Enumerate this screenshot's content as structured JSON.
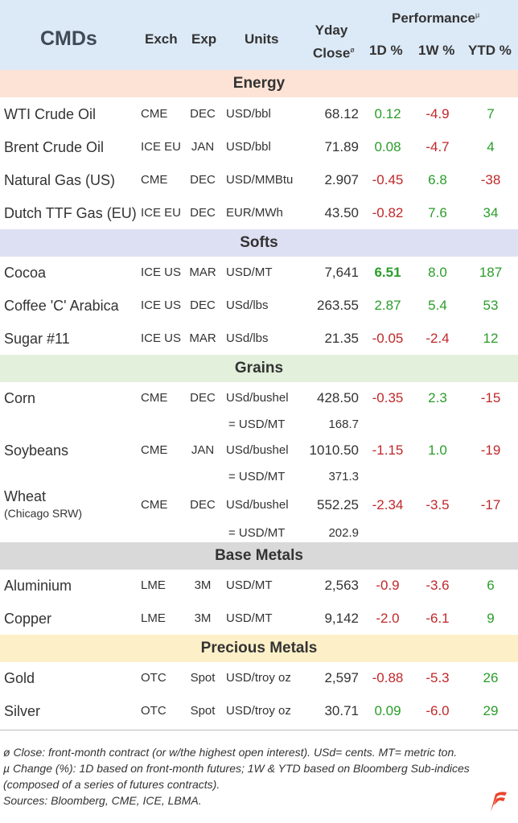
{
  "header": {
    "title": "CMDs",
    "exch": "Exch",
    "exp": "Exp",
    "units": "Units",
    "yday_line1": "Yday",
    "yday_line2": "Close",
    "yday_mark": "ø",
    "performance": "Performance",
    "perf_mark": "µ",
    "d1": "1D %",
    "w1": "1W %",
    "ytd": "YTD %"
  },
  "sections": {
    "energy": "Energy",
    "softs": "Softs",
    "grains": "Grains",
    "base_metals": "Base Metals",
    "precious_metals": "Precious Metals"
  },
  "colors": {
    "header_bg": "#dce9f6",
    "energy_bg": "#fde3d6",
    "softs_bg": "#dde0f2",
    "grains_bg": "#e3f0dc",
    "base_bg": "#d9d9d9",
    "precious_bg": "#fdf0c8",
    "positive": "#2a9d2a",
    "negative": "#c0282a"
  },
  "rows": {
    "wti": {
      "name": "WTI Crude Oil",
      "exch": "CME",
      "exp": "DEC",
      "units": "USD/bbl",
      "close": "68.12",
      "d1": "0.12",
      "w1": "-4.9",
      "ytd": "7"
    },
    "brent": {
      "name": "Brent Crude Oil",
      "exch": "ICE EU",
      "exp": "JAN",
      "units": "USD/bbl",
      "close": "71.89",
      "d1": "0.08",
      "w1": "-4.7",
      "ytd": "4"
    },
    "natgas": {
      "name": "Natural Gas (US)",
      "exch": "CME",
      "exp": "DEC",
      "units": "USD/MMBtu",
      "close": "2.907",
      "d1": "-0.45",
      "w1": "6.8",
      "ytd": "-38"
    },
    "ttf": {
      "name": "Dutch TTF Gas (EU)",
      "exch": "ICE EU",
      "exp": "DEC",
      "units": "EUR/MWh",
      "close": "43.50",
      "d1": "-0.82",
      "w1": "7.6",
      "ytd": "34"
    },
    "cocoa": {
      "name": "Cocoa",
      "exch": "ICE US",
      "exp": "MAR",
      "units": "USD/MT",
      "close": "7,641",
      "d1": "6.51",
      "w1": "8.0",
      "ytd": "187"
    },
    "coffee": {
      "name": "Coffee 'C' Arabica",
      "exch": "ICE US",
      "exp": "DEC",
      "units": "USd/lbs",
      "close": "263.55",
      "d1": "2.87",
      "w1": "5.4",
      "ytd": "53"
    },
    "sugar": {
      "name": "Sugar #11",
      "exch": "ICE US",
      "exp": "MAR",
      "units": "USd/lbs",
      "close": "21.35",
      "d1": "-0.05",
      "w1": "-2.4",
      "ytd": "12"
    },
    "corn": {
      "name": "Corn",
      "exch": "CME",
      "exp": "DEC",
      "units": "USd/bushel",
      "close": "428.50",
      "d1": "-0.35",
      "w1": "2.3",
      "ytd": "-15",
      "conv_units": "= USD/MT",
      "conv_close": "168.7"
    },
    "soy": {
      "name": "Soybeans",
      "exch": "CME",
      "exp": "JAN",
      "units": "USd/bushel",
      "close": "1010.50",
      "d1": "-1.15",
      "w1": "1.0",
      "ytd": "-19",
      "conv_units": "= USD/MT",
      "conv_close": "371.3"
    },
    "wheat": {
      "name": "Wheat",
      "sub": "(Chicago SRW)",
      "exch": "CME",
      "exp": "DEC",
      "units": "USd/bushel",
      "close": "552.25",
      "d1": "-2.34",
      "w1": "-3.5",
      "ytd": "-17",
      "conv_units": "= USD/MT",
      "conv_close": "202.9"
    },
    "alu": {
      "name": "Aluminium",
      "exch": "LME",
      "exp": "3M",
      "units": "USD/MT",
      "close": "2,563",
      "d1": "-0.9",
      "w1": "-3.6",
      "ytd": "6"
    },
    "copper": {
      "name": "Copper",
      "exch": "LME",
      "exp": "3M",
      "units": "USD/MT",
      "close": "9,142",
      "d1": "-2.0",
      "w1": "-6.1",
      "ytd": "9"
    },
    "gold": {
      "name": "Gold",
      "exch": "OTC",
      "exp": "Spot",
      "units": "USD/troy oz",
      "close": "2,597",
      "d1": "-0.88",
      "w1": "-5.3",
      "ytd": "26"
    },
    "silver": {
      "name": "Silver",
      "exch": "OTC",
      "exp": "Spot",
      "units": "USD/troy oz",
      "close": "30.71",
      "d1": "0.09",
      "w1": "-6.0",
      "ytd": "29"
    }
  },
  "notes": {
    "line1": "ø Close: front-month contract (or w/the highest open interest). USd= cents. MT= metric ton.",
    "line2": "µ Change (%): 1D based on front-month futures; 1W & YTD based on Bloomberg Sub-indices (composed of a series of futures contracts).",
    "line3": "Sources: Bloomberg, CME, ICE, LBMA."
  },
  "logo_icon": "flag-logo-icon"
}
